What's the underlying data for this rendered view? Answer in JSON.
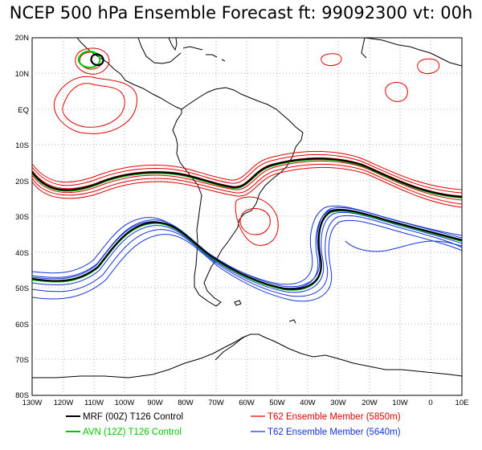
{
  "title": "NCEP 500 hPa Ensemble Forecast   ft: 99092300  vt: 00h",
  "latitude_labels": [
    "20N",
    "10N",
    "EQ",
    "10S",
    "20S",
    "30S",
    "40S",
    "50S",
    "60S",
    "70S",
    "80S"
  ],
  "longitude_labels": [
    "130W",
    "120W",
    "110W",
    "100W",
    "90W",
    "80W",
    "70W",
    "60W",
    "50W",
    "40W",
    "30W",
    "20W",
    "10W",
    "0",
    "10E"
  ],
  "legend": [
    {
      "label": "MRF (00Z) T126 Control",
      "color": "#000000",
      "text_color": "#000000"
    },
    {
      "label": "AVN (12Z) T126 Control",
      "color": "#00c800",
      "text_color": "#00c800"
    },
    {
      "label": "T62 Ensemble Member (5850m)",
      "color": "#e00000",
      "text_color": "#e00000"
    },
    {
      "label": "T62 Ensemble Member (5640m)",
      "color": "#1432dc",
      "text_color": "#1432dc"
    }
  ],
  "colors": {
    "mrf": "#000000",
    "avn": "#00c800",
    "member_5850": "#e00000",
    "member_5640": "#1432dc",
    "coast": "#000000",
    "grid": "#b0b0b0"
  }
}
